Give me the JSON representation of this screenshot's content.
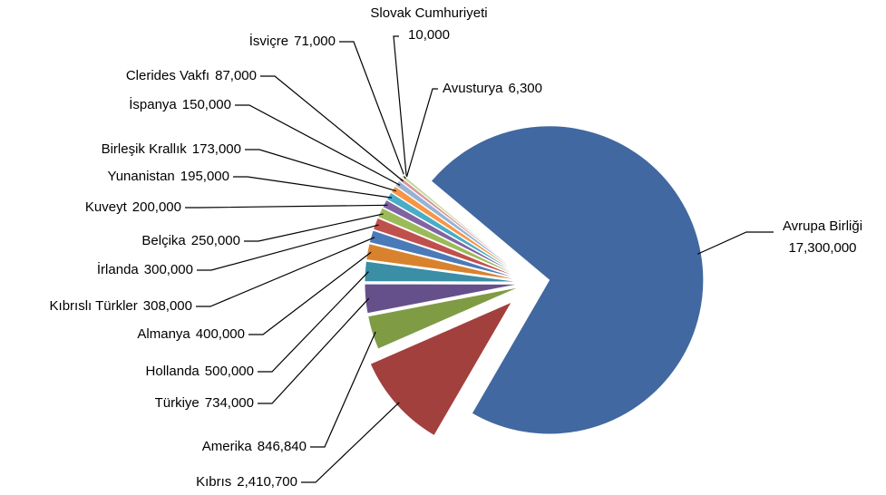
{
  "chart_data": {
    "type": "pie",
    "categories": [
      "Avrupa Birliği",
      "Kıbrıs",
      "Amerika",
      "Türkiye",
      "Hollanda",
      "Almanya",
      "Kıbrıslı Türkler",
      "İrlanda",
      "Belçika",
      "Kuveyt",
      "Yunanistan",
      "Birleşik Krallık",
      "İspanya",
      "Clerides Vakfı",
      "İsviçre",
      "Slovak Cumhuriyeti",
      "Avusturya"
    ],
    "values": [
      17300000,
      2410700,
      846840,
      734000,
      500000,
      400000,
      308000,
      300000,
      250000,
      200000,
      195000,
      173000,
      150000,
      87000,
      71000,
      10000,
      6300
    ],
    "value_labels": [
      "17,300,000",
      "2,410,700",
      "846,840",
      "734,000",
      "500,000",
      "400,000",
      "308,000",
      "300,000",
      "250,000",
      "200,000",
      "195,000",
      "173,000",
      "150,000",
      "87,000",
      "71,000",
      "10,000",
      "6,300"
    ],
    "colors": [
      "#4168a0",
      "#a2403e",
      "#7f9c45",
      "#66508b",
      "#3a8ea5",
      "#d9822e",
      "#4a7ab8",
      "#c0504d",
      "#9bbb59",
      "#8064a2",
      "#4bacc6",
      "#f79646",
      "#95b3d7",
      "#d99694",
      "#c3d69b",
      "#b3a2c7",
      "#93cddd"
    ]
  }
}
